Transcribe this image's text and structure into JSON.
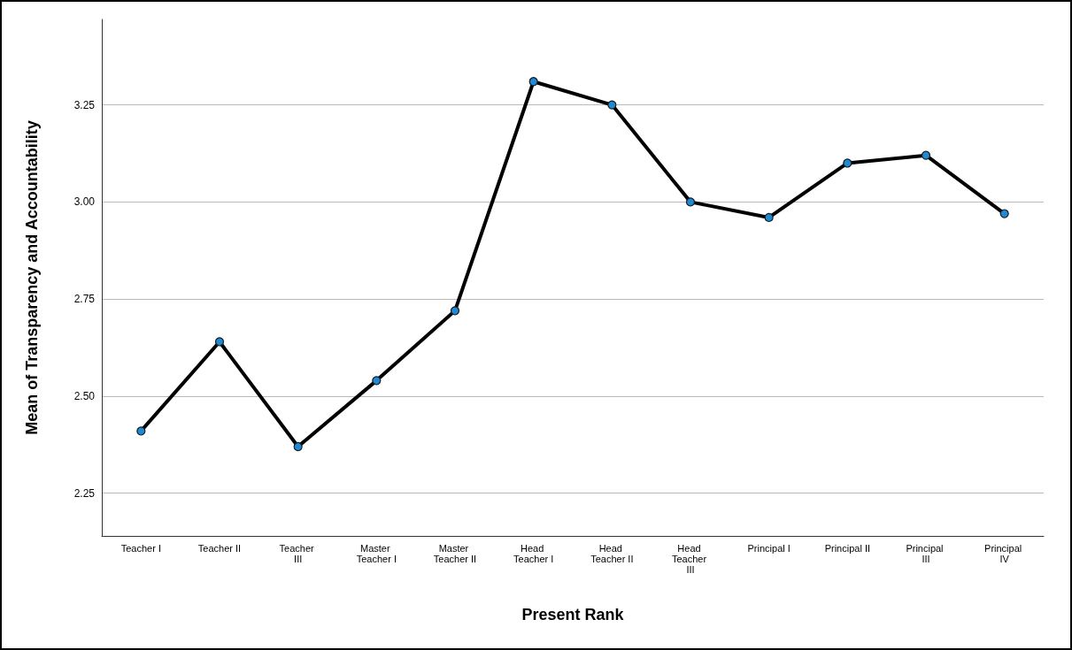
{
  "chart_data": {
    "type": "line",
    "xlabel": "Present Rank",
    "ylabel": "Mean of Transparency and Accountability",
    "categories": [
      "Teacher I",
      "Teacher II",
      "Teacher III",
      "Master Teacher I",
      "Master Teacher II",
      "Head Teacher I",
      "Head Teacher II",
      "Head Teacher III",
      "Principal I",
      "Principal II",
      "Principal III",
      "Principal IV"
    ],
    "series": [
      {
        "color": "#000000",
        "values": [
          2.41,
          2.64,
          2.37,
          2.54,
          2.72,
          3.31,
          3.25,
          3.0,
          2.96,
          3.1,
          3.12,
          2.97
        ]
      }
    ],
    "ylim": [
      2.14,
      3.47
    ],
    "yticks": [
      {
        "value": 2.25,
        "label": "2.25"
      },
      {
        "value": 2.5,
        "label": "2.50"
      },
      {
        "value": 2.75,
        "label": "2.75"
      },
      {
        "value": 3,
        "label": "3.00"
      },
      {
        "value": 3.25,
        "label": "3.25"
      }
    ],
    "grid": "y",
    "marker": "circle",
    "line_style": "solid"
  }
}
